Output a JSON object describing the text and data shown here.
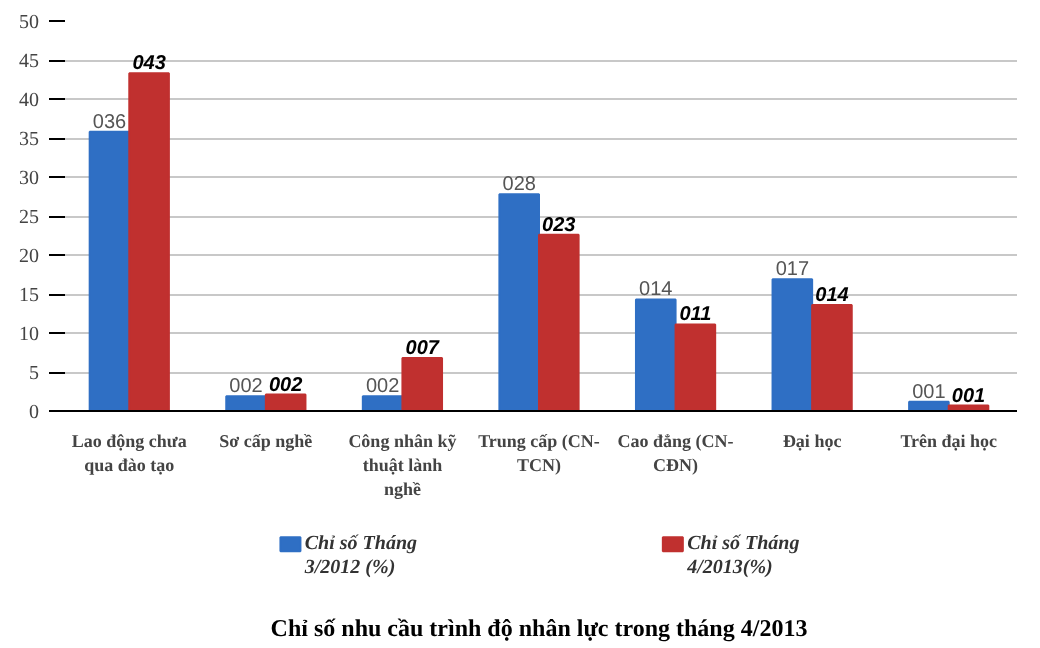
{
  "chart_data": {
    "type": "bar",
    "title": "Chỉ số nhu cầu trình độ nhân lực trong tháng 4/2013",
    "categories": [
      "Lao động chưa qua đào tạo",
      "Sơ cấp nghề",
      "Công nhân kỹ thuật lành nghề",
      "Trung cấp (CN-TCN)",
      "Cao đẳng (CN-CĐN)",
      "Đại học",
      "Trên đại học"
    ],
    "series": [
      {
        "name": "Chỉ số Tháng 3/2012 (%)",
        "color": "#2f6fc4",
        "values": [
          35.8,
          1.9,
          1.9,
          27.8,
          14.3,
          16.9,
          1.2
        ],
        "value_labels": [
          "036",
          "002",
          "002",
          "028",
          "014",
          "017",
          "001"
        ]
      },
      {
        "name": "Chỉ số Tháng 4/2013(%)",
        "color": "#c0302f",
        "values": [
          43.3,
          2.1,
          6.8,
          22.6,
          11.1,
          13.6,
          0.7
        ],
        "value_labels": [
          "043",
          "002",
          "007",
          "023",
          "011",
          "014",
          "001"
        ]
      }
    ],
    "ylim": [
      0,
      50
    ],
    "yticks": [
      0,
      5,
      10,
      15,
      20,
      25,
      30,
      35,
      40,
      45,
      50
    ],
    "grid": "y",
    "legend": "bottom"
  }
}
